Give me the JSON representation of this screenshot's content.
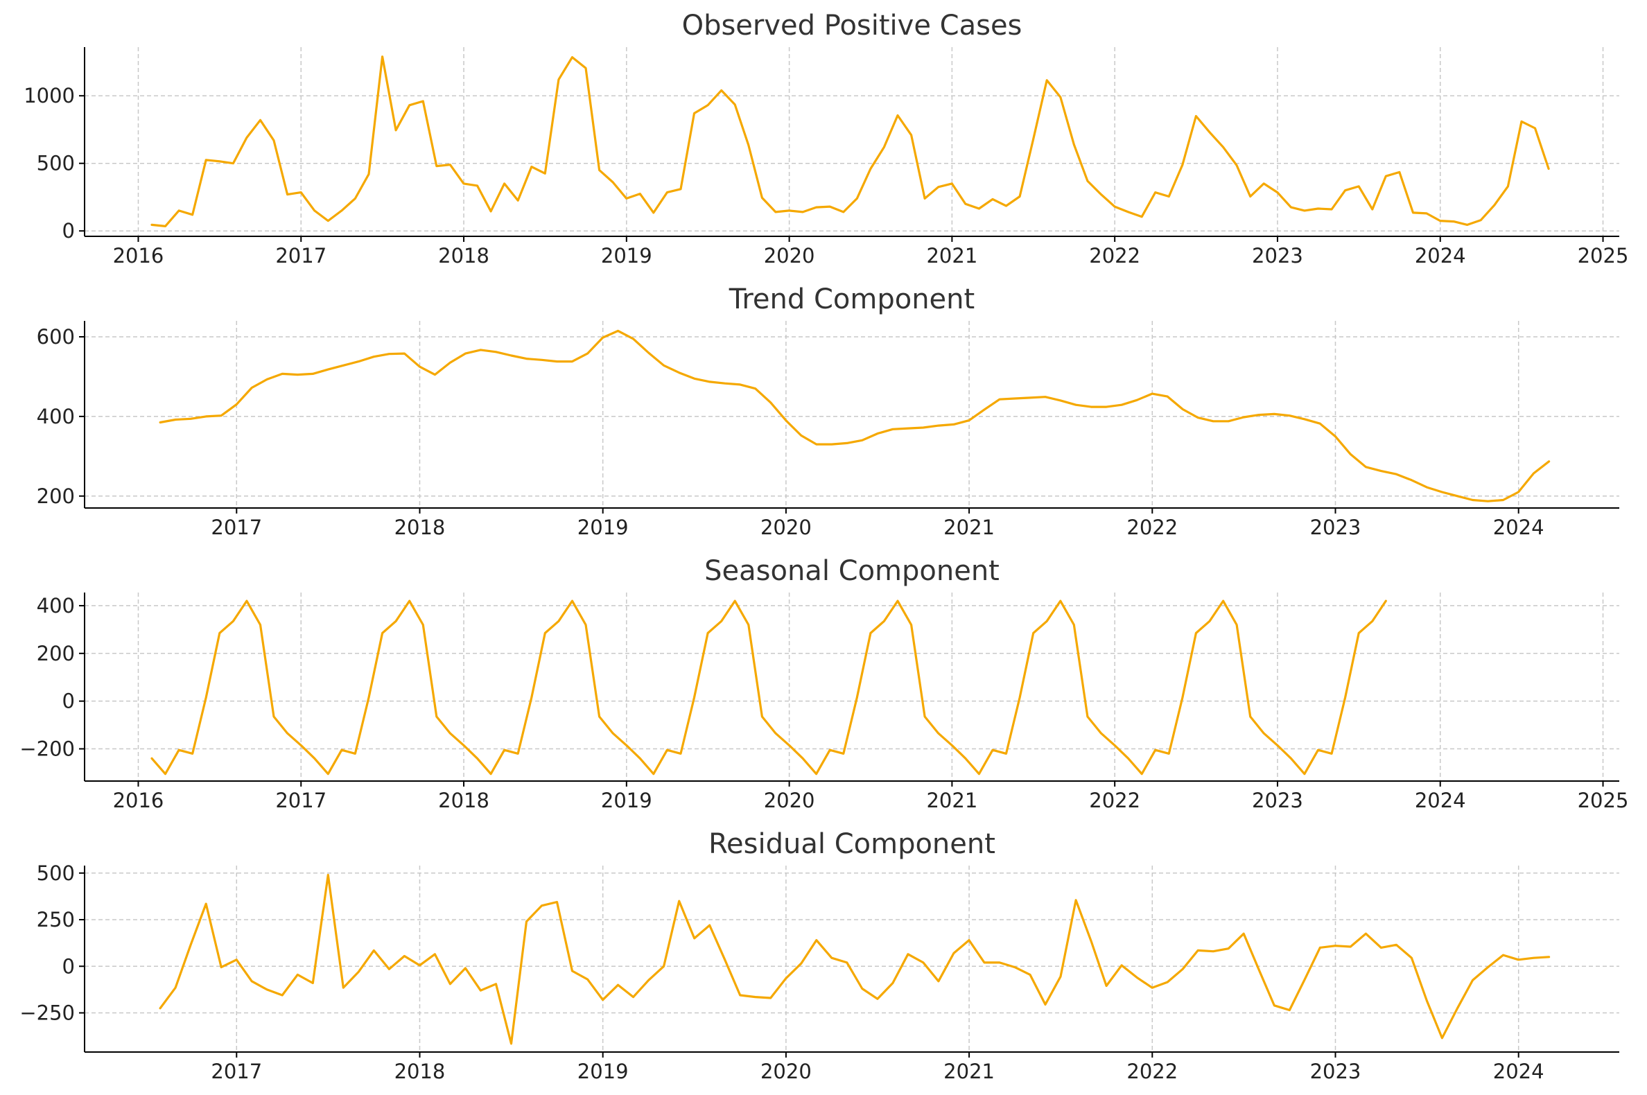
{
  "accent_color": "#f5a800",
  "chart_data": [
    {
      "type": "line",
      "title": "Observed Positive Cases",
      "xlabel": "",
      "ylabel": "",
      "grid": true,
      "xlim": [
        2015.67,
        2025.1
      ],
      "ylim": [
        -40,
        1360
      ],
      "x_ticks": [
        2016,
        2017,
        2018,
        2019,
        2020,
        2021,
        2022,
        2023,
        2024,
        2025
      ],
      "y_ticks": [
        0,
        500,
        1000
      ],
      "x_start": 2016.083,
      "x_step": 0.08333,
      "series": [
        {
          "color": "#f5a800",
          "values": [
            45,
            35,
            150,
            120,
            525,
            515,
            500,
            690,
            820,
            670,
            270,
            285,
            150,
            75,
            150,
            240,
            420,
            1290,
            745,
            930,
            960,
            480,
            490,
            350,
            335,
            145,
            350,
            225,
            475,
            425,
            1120,
            1285,
            1205,
            450,
            360,
            240,
            275,
            135,
            285,
            310,
            870,
            930,
            1040,
            935,
            635,
            245,
            140,
            150,
            140,
            175,
            180,
            140,
            240,
            460,
            620,
            855,
            710,
            240,
            325,
            350,
            200,
            165,
            235,
            185,
            255,
            680,
            1115,
            990,
            640,
            370,
            270,
            180,
            140,
            105,
            285,
            255,
            490,
            850,
            730,
            620,
            485,
            255,
            350,
            285,
            175,
            150,
            165,
            160,
            300,
            330,
            160,
            405,
            435,
            135,
            130,
            75,
            70,
            45,
            80,
            190,
            330,
            810,
            760,
            460
          ]
        }
      ]
    },
    {
      "type": "line",
      "title": "Trend Component",
      "xlabel": "",
      "ylabel": "",
      "grid": true,
      "xlim": [
        2016.17,
        2024.55
      ],
      "ylim": [
        170,
        640
      ],
      "x_ticks": [
        2017,
        2018,
        2019,
        2020,
        2021,
        2022,
        2023,
        2024
      ],
      "y_ticks": [
        200,
        400,
        600
      ],
      "x_start": 2016.583,
      "x_step": 0.08333,
      "series": [
        {
          "color": "#f5a800",
          "values": [
            385,
            392,
            394,
            400,
            402,
            430,
            472,
            493,
            507,
            505,
            507,
            518,
            528,
            538,
            550,
            557,
            558,
            525,
            505,
            535,
            558,
            567,
            562,
            553,
            545,
            542,
            538,
            538,
            558,
            598,
            615,
            595,
            560,
            528,
            510,
            495,
            487,
            483,
            480,
            470,
            435,
            390,
            352,
            330,
            330,
            333,
            340,
            357,
            368,
            370,
            372,
            377,
            380,
            390,
            417,
            443,
            445,
            447,
            449,
            440,
            429,
            424,
            424,
            429,
            441,
            457,
            450,
            418,
            397,
            388,
            388,
            398,
            404,
            406,
            402,
            393,
            382,
            350,
            305,
            273,
            263,
            255,
            240,
            222,
            210,
            200,
            190,
            187,
            190,
            210,
            257,
            287
          ]
        }
      ]
    },
    {
      "type": "line",
      "title": "Seasonal Component",
      "xlabel": "",
      "ylabel": "",
      "grid": true,
      "xlim": [
        2015.67,
        2025.1
      ],
      "ylim": [
        -335,
        455
      ],
      "x_ticks": [
        2016,
        2017,
        2018,
        2019,
        2020,
        2021,
        2022,
        2023,
        2024,
        2025
      ],
      "y_ticks": [
        -200,
        0,
        200,
        400
      ],
      "x_start": 2016.083,
      "x_step": 0.08333,
      "series": [
        {
          "color": "#f5a800",
          "values": [
            -240,
            -305,
            -205,
            -220,
            15,
            285,
            335,
            420,
            320,
            -65,
            -135,
            -185,
            -240,
            -305,
            -205,
            -220,
            15,
            285,
            335,
            420,
            320,
            -65,
            -135,
            -185,
            -240,
            -305,
            -205,
            -220,
            15,
            285,
            335,
            420,
            320,
            -65,
            -135,
            -185,
            -240,
            -305,
            -205,
            -220,
            15,
            285,
            335,
            420,
            320,
            -65,
            -135,
            -185,
            -240,
            -305,
            -205,
            -220,
            15,
            285,
            335,
            420,
            320,
            -65,
            -135,
            -185,
            -240,
            -305,
            -205,
            -220,
            15,
            285,
            335,
            420,
            320,
            -65,
            -135,
            -185,
            -240,
            -305,
            -205,
            -220,
            15,
            285,
            335,
            420,
            320,
            -65,
            -135,
            -185,
            -240,
            -305,
            -205,
            -220,
            15,
            285,
            335,
            420
          ]
        }
      ]
    },
    {
      "type": "line",
      "title": "Residual Component",
      "xlabel": "",
      "ylabel": "",
      "grid": true,
      "xlim": [
        2016.17,
        2024.55
      ],
      "ylim": [
        -460,
        540
      ],
      "x_ticks": [
        2017,
        2018,
        2019,
        2020,
        2021,
        2022,
        2023,
        2024
      ],
      "y_ticks": [
        -250,
        0,
        250,
        500
      ],
      "x_start": 2016.583,
      "x_step": 0.08333,
      "series": [
        {
          "color": "#f5a800",
          "values": [
            -225,
            -115,
            115,
            335,
            -5,
            35,
            -80,
            -125,
            -155,
            -45,
            -90,
            490,
            -115,
            -30,
            85,
            -15,
            55,
            5,
            65,
            -95,
            -10,
            -130,
            -95,
            -415,
            240,
            325,
            345,
            -25,
            -70,
            -180,
            -100,
            -165,
            -75,
            0,
            350,
            150,
            220,
            35,
            -155,
            -165,
            -170,
            -65,
            15,
            140,
            45,
            20,
            -120,
            -175,
            -90,
            65,
            20,
            -80,
            70,
            140,
            20,
            20,
            -5,
            -45,
            -205,
            -55,
            355,
            135,
            -105,
            5,
            -60,
            -115,
            -85,
            -15,
            85,
            80,
            95,
            175,
            -20,
            -210,
            -235,
            -70,
            100,
            110,
            105,
            175,
            100,
            115,
            45,
            -185,
            -385,
            -225,
            -75,
            -5,
            60,
            35,
            45,
            50
          ]
        }
      ]
    }
  ]
}
